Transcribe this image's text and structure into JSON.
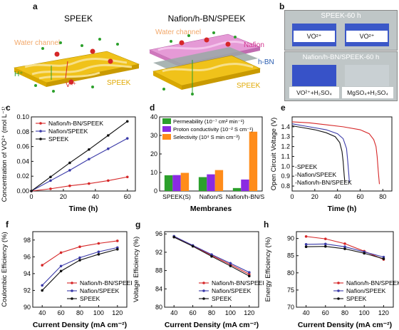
{
  "panel_labels": {
    "a": "a",
    "b": "b",
    "c": "c",
    "d": "d",
    "e": "e",
    "f": "f",
    "g": "g",
    "h": "h"
  },
  "schematic": {
    "left_title": "SPEEK",
    "right_title": "Nafion/h-BN/SPEEK",
    "water_channel_left": "Water channel",
    "water_channel_right": "Water channel",
    "h_plus": "H⁺",
    "vx_plus": "Vˣ⁺",
    "speek_left": "SPEEK",
    "nafion": "Nafion",
    "hbn": "h-BN",
    "speek_right": "SPEEK"
  },
  "photos": {
    "top_title": "SPEEK-60 h",
    "top_left": "VO²⁺",
    "top_right": "VO²⁺",
    "bottom_title": "Nafion/h-BN/SPEEK-60 h",
    "bottom_left": "VO²⁺+H₂SO₄",
    "bottom_right": "MgSO₄+H₂SO₄"
  },
  "colors": {
    "red": "#d62728",
    "blue": "#3a3aa8",
    "black": "#111111",
    "green": "#2ca02c",
    "purple": "#8a2be2",
    "orange": "#ff8c1a"
  },
  "chart_data": [
    {
      "id": "c",
      "type": "line",
      "xlabel": "Time (h)",
      "ylabel": "Concentration of VO²⁺ (mol L⁻¹)",
      "xlim": [
        0,
        65
      ],
      "ylim": [
        0,
        0.1
      ],
      "xticks": [
        0,
        20,
        40,
        60
      ],
      "yticks": [
        0.0,
        0.02,
        0.04,
        0.06,
        0.08,
        0.1
      ],
      "ytick_labels": [
        "0.00",
        "0.02",
        "0.04",
        "0.06",
        "0.08",
        "0.10"
      ],
      "legend_position": "top-left",
      "series": [
        {
          "name": "Nafion/h-BN/SPEEK",
          "color": "#d62728",
          "x": [
            0,
            12,
            24,
            36,
            48,
            60
          ],
          "y": [
            0,
            0.003,
            0.007,
            0.01,
            0.014,
            0.019
          ]
        },
        {
          "name": "Nafion/SPEEK",
          "color": "#3a3aa8",
          "x": [
            0,
            12,
            24,
            36,
            48,
            60
          ],
          "y": [
            0,
            0.014,
            0.028,
            0.043,
            0.057,
            0.071
          ]
        },
        {
          "name": "SPEEK",
          "color": "#111111",
          "x": [
            0,
            12,
            24,
            36,
            48,
            60
          ],
          "y": [
            0,
            0.019,
            0.038,
            0.056,
            0.075,
            0.094
          ]
        }
      ]
    },
    {
      "id": "d",
      "type": "bar",
      "xlabel": "Membranes",
      "ylabel": "",
      "ylim": [
        0,
        40
      ],
      "yticks": [
        0,
        10,
        20,
        30,
        40
      ],
      "categories": [
        "SPEEK(S)",
        "Nafion/S",
        "Nafion/h-BN/S"
      ],
      "legend_position": "top-left",
      "series": [
        {
          "name": "Permeability (10⁻⁷ cm² min⁻¹)",
          "color": "#2ca02c",
          "values": [
            8.5,
            7.5,
            1.6
          ]
        },
        {
          "name": "Proton conductivity (10⁻² S cm⁻¹)",
          "color": "#8a2be2",
          "values": [
            8.6,
            9.0,
            6.2
          ]
        },
        {
          "name": "Selectivity (10⁴ S min cm⁻³)",
          "color": "#ff8c1a",
          "values": [
            9.8,
            11.3,
            32.0
          ]
        }
      ]
    },
    {
      "id": "e",
      "type": "line",
      "xlabel": "Time (h)",
      "ylabel": "Open Circuit Voltage (V)",
      "xlim": [
        0,
        88
      ],
      "ylim": [
        0.75,
        1.5
      ],
      "xticks": [
        0,
        20,
        40,
        60,
        80
      ],
      "yticks": [
        0.8,
        0.9,
        1.0,
        1.1,
        1.2,
        1.3,
        1.4
      ],
      "ytick_labels": [
        "0.8",
        "0.9",
        "1.0",
        "1.1",
        "1.2",
        "1.3",
        "1.4"
      ],
      "legend_position": "bottom-left",
      "series": [
        {
          "name": "SPEEK",
          "color": "#111111",
          "x": [
            0,
            10,
            20,
            30,
            38,
            42,
            44,
            45,
            46,
            46.5
          ],
          "y": [
            1.41,
            1.39,
            1.37,
            1.34,
            1.3,
            1.24,
            1.15,
            1.05,
            0.9,
            0.84
          ]
        },
        {
          "name": "Nafion/SPEEK",
          "color": "#3a3aa8",
          "x": [
            0,
            10,
            20,
            30,
            40,
            45,
            48,
            49,
            50,
            50.5
          ],
          "y": [
            1.43,
            1.41,
            1.39,
            1.37,
            1.33,
            1.28,
            1.18,
            1.06,
            0.92,
            0.84
          ]
        },
        {
          "name": "Nafion/h-BN/SPEEK",
          "color": "#d62728",
          "x": [
            0,
            15,
            30,
            45,
            60,
            68,
            72,
            74,
            75,
            76,
            77
          ],
          "y": [
            1.45,
            1.44,
            1.42,
            1.4,
            1.37,
            1.33,
            1.27,
            1.2,
            1.1,
            0.95,
            0.82
          ]
        }
      ]
    },
    {
      "id": "f",
      "type": "line",
      "xlabel": "Current Density (mA cm⁻²)",
      "ylabel": "Coulombic Efficiency (%)",
      "xlim": [
        30,
        130
      ],
      "ylim": [
        90,
        99
      ],
      "xticks": [
        40,
        60,
        80,
        100,
        120
      ],
      "yticks": [
        90,
        92,
        94,
        96,
        98
      ],
      "legend_position": "bottom-right",
      "series": [
        {
          "name": "Nafion/h-BN/SPEEK",
          "color": "#d62728",
          "x": [
            40,
            60,
            80,
            100,
            120
          ],
          "y": [
            95.0,
            96.5,
            97.2,
            97.6,
            97.9
          ]
        },
        {
          "name": "Nafion/SPEEK",
          "color": "#3a3aa8",
          "x": [
            40,
            60,
            80,
            100,
            120
          ],
          "y": [
            92.6,
            94.9,
            95.9,
            96.6,
            97.1
          ]
        },
        {
          "name": "SPEEK",
          "color": "#111111",
          "x": [
            40,
            60,
            80,
            100,
            120
          ],
          "y": [
            92.0,
            94.3,
            95.6,
            96.3,
            96.9
          ]
        }
      ]
    },
    {
      "id": "g",
      "type": "line",
      "xlabel": "Current Density (mA cm⁻²)",
      "ylabel": "Voltage Efficiency (%)",
      "xlim": [
        30,
        130
      ],
      "ylim": [
        80,
        96.5
      ],
      "xticks": [
        40,
        60,
        80,
        100,
        120
      ],
      "yticks": [
        80,
        84,
        88,
        92,
        96
      ],
      "legend_position": "bottom-right",
      "series": [
        {
          "name": "Nafion/h-BN/SPEEK",
          "color": "#d62728",
          "x": [
            40,
            60,
            80,
            100,
            120
          ],
          "y": [
            95.4,
            93.4,
            91.3,
            89.3,
            87.2
          ]
        },
        {
          "name": "Nafion/SPEEK",
          "color": "#3a3aa8",
          "x": [
            40,
            60,
            80,
            100,
            120
          ],
          "y": [
            95.5,
            93.5,
            91.5,
            89.6,
            87.6
          ]
        },
        {
          "name": "SPEEK",
          "color": "#111111",
          "x": [
            40,
            60,
            80,
            100,
            120
          ],
          "y": [
            95.3,
            93.3,
            91.1,
            89.0,
            86.8
          ]
        }
      ]
    },
    {
      "id": "h",
      "type": "line",
      "xlabel": "Current Density (mA cm⁻²)",
      "ylabel": "Energy Efficiency (%)",
      "xlim": [
        30,
        130
      ],
      "ylim": [
        70,
        92
      ],
      "xticks": [
        40,
        60,
        80,
        100,
        120
      ],
      "yticks": [
        70,
        75,
        80,
        85,
        90
      ],
      "legend_position": "bottom-right",
      "series": [
        {
          "name": "Nafion/h-BN/SPEEK",
          "color": "#d62728",
          "x": [
            40,
            60,
            80,
            100,
            120
          ],
          "y": [
            90.6,
            89.9,
            88.5,
            86.3,
            83.9
          ]
        },
        {
          "name": "Nafion/SPEEK",
          "color": "#3a3aa8",
          "x": [
            40,
            60,
            80,
            100,
            120
          ],
          "y": [
            88.3,
            88.4,
            87.6,
            86.1,
            84.6
          ]
        },
        {
          "name": "SPEEK",
          "color": "#111111",
          "x": [
            40,
            60,
            80,
            100,
            120
          ],
          "y": [
            87.6,
            87.7,
            87.0,
            85.7,
            84.1
          ]
        }
      ]
    }
  ]
}
